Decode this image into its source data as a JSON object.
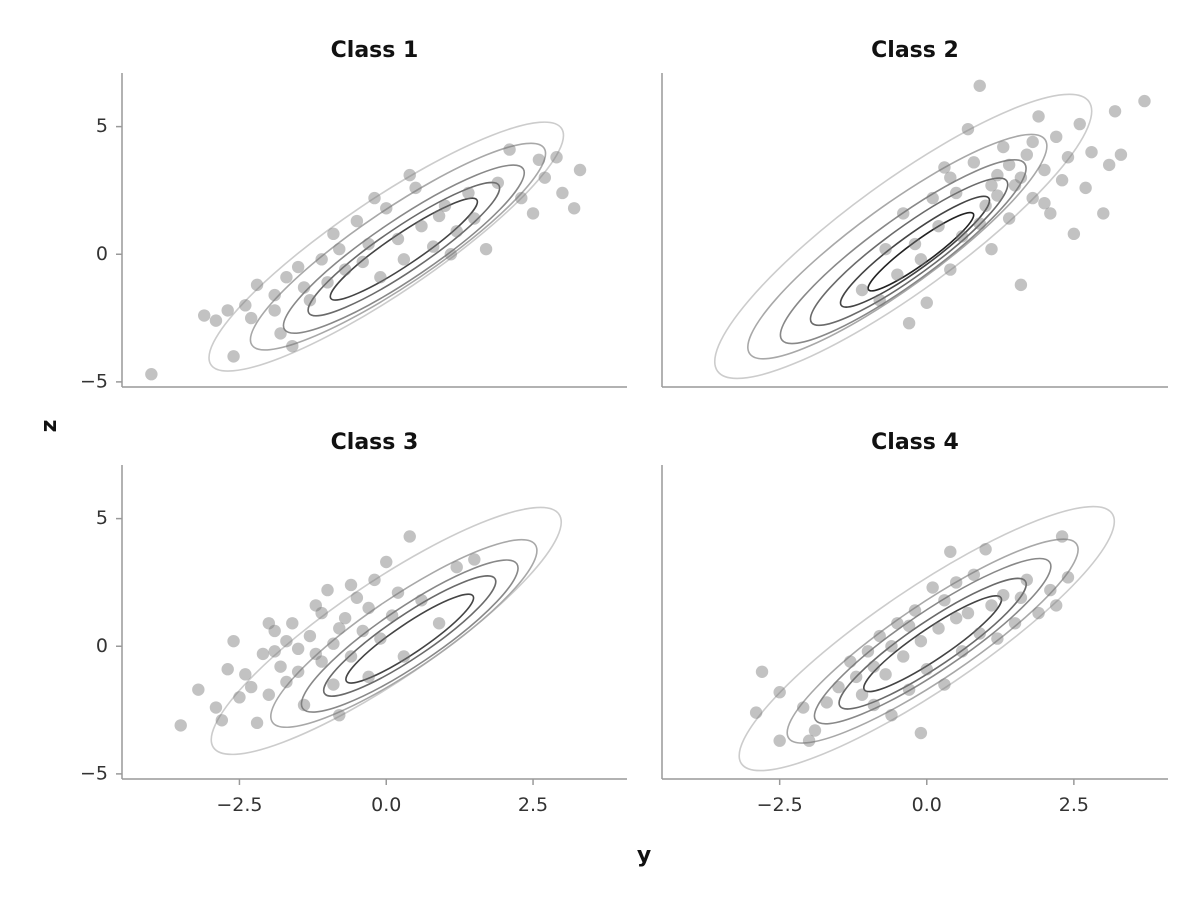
{
  "chart_data": {
    "type": "scatter",
    "xlabel": "y",
    "ylabel": "z",
    "xlim": [
      -4.5,
      4.1
    ],
    "ylim": [
      -5.2,
      7.1
    ],
    "xticks": [
      "−2.5",
      "0.0",
      "2.5"
    ],
    "xtick_values": [
      -2.5,
      0.0,
      2.5
    ],
    "yticks": [
      "5",
      "0",
      "−5"
    ],
    "ytick_values": [
      5,
      0,
      -5
    ],
    "contour_colors": [
      "#cccccc",
      "#a8a8a8",
      "#888888",
      "#6a6a6a",
      "#444444",
      "#222222"
    ],
    "point_color": "#777777",
    "panels": [
      {
        "title": "Class 1",
        "points": [
          {
            "x": -4.0,
            "y": -4.7
          },
          {
            "x": -2.6,
            "y": -4.0
          },
          {
            "x": -3.1,
            "y": -2.4
          },
          {
            "x": -2.9,
            "y": -2.6
          },
          {
            "x": -2.7,
            "y": -2.2
          },
          {
            "x": -2.4,
            "y": -2.0
          },
          {
            "x": -2.2,
            "y": -1.2
          },
          {
            "x": -1.9,
            "y": -1.6
          },
          {
            "x": -1.6,
            "y": -3.6
          },
          {
            "x": -1.8,
            "y": -3.1
          },
          {
            "x": -1.5,
            "y": -0.5
          },
          {
            "x": -1.3,
            "y": -1.8
          },
          {
            "x": -1.1,
            "y": -0.2
          },
          {
            "x": -1.0,
            "y": -1.1
          },
          {
            "x": -0.9,
            "y": 0.8
          },
          {
            "x": -0.7,
            "y": -0.6
          },
          {
            "x": -0.5,
            "y": 1.3
          },
          {
            "x": -0.4,
            "y": -0.3
          },
          {
            "x": -0.3,
            "y": 0.4
          },
          {
            "x": -0.1,
            "y": -0.9
          },
          {
            "x": 0.0,
            "y": 1.8
          },
          {
            "x": 0.2,
            "y": 0.6
          },
          {
            "x": 0.3,
            "y": -0.2
          },
          {
            "x": 0.5,
            "y": 2.6
          },
          {
            "x": 0.6,
            "y": 1.1
          },
          {
            "x": 0.8,
            "y": 0.3
          },
          {
            "x": 1.0,
            "y": 1.9
          },
          {
            "x": 1.2,
            "y": 0.9
          },
          {
            "x": 1.4,
            "y": 2.4
          },
          {
            "x": 1.5,
            "y": 1.4
          },
          {
            "x": 1.7,
            "y": 0.2
          },
          {
            "x": 1.9,
            "y": 2.8
          },
          {
            "x": 2.1,
            "y": 4.1
          },
          {
            "x": 2.3,
            "y": 2.2
          },
          {
            "x": 2.5,
            "y": 1.6
          },
          {
            "x": 2.7,
            "y": 3.0
          },
          {
            "x": 2.9,
            "y": 3.8
          },
          {
            "x": 3.0,
            "y": 2.4
          },
          {
            "x": 3.2,
            "y": 1.8
          },
          {
            "x": 3.3,
            "y": 3.3
          },
          {
            "x": 2.6,
            "y": 3.7
          },
          {
            "x": 0.4,
            "y": 3.1
          },
          {
            "x": -1.9,
            "y": -2.2
          },
          {
            "x": -2.3,
            "y": -2.5
          },
          {
            "x": -0.8,
            "y": 0.2
          },
          {
            "x": 0.9,
            "y": 1.5
          },
          {
            "x": -1.4,
            "y": -1.3
          },
          {
            "x": 1.1,
            "y": 0.0
          },
          {
            "x": -0.2,
            "y": 2.2
          },
          {
            "x": -1.7,
            "y": -0.9
          }
        ]
      },
      {
        "title": "Class 2",
        "points": [
          {
            "x": -0.8,
            "y": -1.8
          },
          {
            "x": -0.3,
            "y": -2.7
          },
          {
            "x": -1.1,
            "y": -1.4
          },
          {
            "x": -0.5,
            "y": -0.8
          },
          {
            "x": -0.2,
            "y": 0.4
          },
          {
            "x": 0.0,
            "y": -1.9
          },
          {
            "x": 0.2,
            "y": 1.1
          },
          {
            "x": 0.4,
            "y": -0.6
          },
          {
            "x": 0.5,
            "y": 2.4
          },
          {
            "x": 0.6,
            "y": 0.7
          },
          {
            "x": 0.8,
            "y": 3.6
          },
          {
            "x": 0.9,
            "y": 6.6
          },
          {
            "x": 1.0,
            "y": 1.9
          },
          {
            "x": 1.1,
            "y": 0.2
          },
          {
            "x": 1.2,
            "y": 3.1
          },
          {
            "x": 1.3,
            "y": 4.2
          },
          {
            "x": 1.4,
            "y": 1.4
          },
          {
            "x": 1.5,
            "y": 2.7
          },
          {
            "x": 1.6,
            "y": -1.2
          },
          {
            "x": 1.7,
            "y": 3.9
          },
          {
            "x": 1.8,
            "y": 2.2
          },
          {
            "x": 1.9,
            "y": 5.4
          },
          {
            "x": 2.0,
            "y": 3.3
          },
          {
            "x": 2.1,
            "y": 1.6
          },
          {
            "x": 2.2,
            "y": 4.6
          },
          {
            "x": 2.3,
            "y": 2.9
          },
          {
            "x": 2.4,
            "y": 3.8
          },
          {
            "x": 2.5,
            "y": 0.8
          },
          {
            "x": 2.6,
            "y": 5.1
          },
          {
            "x": 2.8,
            "y": 4.0
          },
          {
            "x": 3.0,
            "y": 1.6
          },
          {
            "x": 3.1,
            "y": 3.5
          },
          {
            "x": 3.2,
            "y": 5.6
          },
          {
            "x": 3.3,
            "y": 3.9
          },
          {
            "x": 3.7,
            "y": 6.0
          },
          {
            "x": 0.3,
            "y": 3.4
          },
          {
            "x": -0.4,
            "y": 1.6
          },
          {
            "x": 0.7,
            "y": 4.9
          },
          {
            "x": 1.1,
            "y": 2.7
          },
          {
            "x": 0.1,
            "y": 2.2
          },
          {
            "x": -0.7,
            "y": 0.2
          },
          {
            "x": 1.6,
            "y": 3.0
          },
          {
            "x": 2.0,
            "y": 2.0
          },
          {
            "x": 0.9,
            "y": 1.2
          },
          {
            "x": 1.4,
            "y": 3.5
          },
          {
            "x": -0.1,
            "y": -0.2
          },
          {
            "x": 2.7,
            "y": 2.6
          },
          {
            "x": 1.2,
            "y": 2.3
          },
          {
            "x": 0.4,
            "y": 3.0
          },
          {
            "x": 1.8,
            "y": 4.4
          }
        ]
      },
      {
        "title": "Class 3",
        "points": [
          {
            "x": -3.5,
            "y": -3.1
          },
          {
            "x": -3.2,
            "y": -1.7
          },
          {
            "x": -2.9,
            "y": -2.4
          },
          {
            "x": -2.8,
            "y": -2.9
          },
          {
            "x": -2.6,
            "y": 0.2
          },
          {
            "x": -2.4,
            "y": -1.1
          },
          {
            "x": -2.2,
            "y": -3.0
          },
          {
            "x": -2.1,
            "y": -0.3
          },
          {
            "x": -2.0,
            "y": -1.9
          },
          {
            "x": -1.9,
            "y": 0.6
          },
          {
            "x": -1.8,
            "y": -0.8
          },
          {
            "x": -1.7,
            "y": -1.4
          },
          {
            "x": -1.6,
            "y": 0.9
          },
          {
            "x": -1.5,
            "y": -0.1
          },
          {
            "x": -1.4,
            "y": -2.3
          },
          {
            "x": -1.3,
            "y": 0.4
          },
          {
            "x": -1.2,
            "y": 1.6
          },
          {
            "x": -1.1,
            "y": -0.6
          },
          {
            "x": -1.0,
            "y": 2.2
          },
          {
            "x": -0.9,
            "y": 0.1
          },
          {
            "x": -0.8,
            "y": -2.7
          },
          {
            "x": -0.7,
            "y": 1.1
          },
          {
            "x": -0.6,
            "y": -0.4
          },
          {
            "x": -0.5,
            "y": 1.9
          },
          {
            "x": -0.4,
            "y": 0.6
          },
          {
            "x": -0.3,
            "y": -1.2
          },
          {
            "x": -0.2,
            "y": 2.6
          },
          {
            "x": -0.1,
            "y": 0.3
          },
          {
            "x": 0.0,
            "y": 3.3
          },
          {
            "x": 0.1,
            "y": 1.2
          },
          {
            "x": 0.3,
            "y": -0.4
          },
          {
            "x": 0.4,
            "y": 4.3
          },
          {
            "x": 0.6,
            "y": 1.8
          },
          {
            "x": 0.9,
            "y": 0.9
          },
          {
            "x": 1.2,
            "y": 3.1
          },
          {
            "x": 1.5,
            "y": 3.4
          },
          {
            "x": -2.7,
            "y": -0.9
          },
          {
            "x": -2.3,
            "y": -1.6
          },
          {
            "x": -1.7,
            "y": 0.2
          },
          {
            "x": -1.1,
            "y": 1.3
          },
          {
            "x": -0.9,
            "y": -1.5
          },
          {
            "x": -0.6,
            "y": 2.4
          },
          {
            "x": -1.5,
            "y": -1.0
          },
          {
            "x": -1.9,
            "y": -0.2
          },
          {
            "x": -2.5,
            "y": -2.0
          },
          {
            "x": -0.3,
            "y": 1.5
          },
          {
            "x": 0.2,
            "y": 2.1
          },
          {
            "x": -1.2,
            "y": -0.3
          },
          {
            "x": -0.8,
            "y": 0.7
          },
          {
            "x": -2.0,
            "y": 0.9
          }
        ]
      },
      {
        "title": "Class 4",
        "points": [
          {
            "x": -2.5,
            "y": -3.7
          },
          {
            "x": -2.0,
            "y": -3.7
          },
          {
            "x": -2.9,
            "y": -2.6
          },
          {
            "x": -2.8,
            "y": -1.0
          },
          {
            "x": -2.5,
            "y": -1.8
          },
          {
            "x": -2.1,
            "y": -2.4
          },
          {
            "x": -1.9,
            "y": -3.3
          },
          {
            "x": -1.7,
            "y": -2.2
          },
          {
            "x": -1.5,
            "y": -1.6
          },
          {
            "x": -1.3,
            "y": -0.6
          },
          {
            "x": -1.1,
            "y": -1.9
          },
          {
            "x": -1.0,
            "y": -0.2
          },
          {
            "x": -0.9,
            "y": -2.3
          },
          {
            "x": -0.8,
            "y": 0.4
          },
          {
            "x": -0.7,
            "y": -1.1
          },
          {
            "x": -0.6,
            "y": -2.7
          },
          {
            "x": -0.5,
            "y": 0.9
          },
          {
            "x": -0.4,
            "y": -0.4
          },
          {
            "x": -0.3,
            "y": -1.7
          },
          {
            "x": -0.2,
            "y": 1.4
          },
          {
            "x": -0.1,
            "y": 0.2
          },
          {
            "x": 0.0,
            "y": -0.9
          },
          {
            "x": 0.1,
            "y": 2.3
          },
          {
            "x": 0.2,
            "y": 0.7
          },
          {
            "x": 0.3,
            "y": -1.5
          },
          {
            "x": 0.4,
            "y": 3.7
          },
          {
            "x": 0.5,
            "y": 1.1
          },
          {
            "x": 0.6,
            "y": -0.2
          },
          {
            "x": 0.8,
            "y": 2.8
          },
          {
            "x": 0.9,
            "y": 0.5
          },
          {
            "x": 1.0,
            "y": 3.8
          },
          {
            "x": 1.1,
            "y": 1.6
          },
          {
            "x": 1.3,
            "y": 2.0
          },
          {
            "x": 1.5,
            "y": 0.9
          },
          {
            "x": 1.7,
            "y": 2.6
          },
          {
            "x": 1.9,
            "y": 1.3
          },
          {
            "x": 2.1,
            "y": 2.2
          },
          {
            "x": 2.2,
            "y": 1.6
          },
          {
            "x": 2.3,
            "y": 4.3
          },
          {
            "x": 2.4,
            "y": 2.7
          },
          {
            "x": -0.1,
            "y": -3.4
          },
          {
            "x": -1.2,
            "y": -1.2
          },
          {
            "x": 0.3,
            "y": 1.8
          },
          {
            "x": 0.7,
            "y": 1.3
          },
          {
            "x": -0.6,
            "y": 0.0
          },
          {
            "x": 1.2,
            "y": 0.3
          },
          {
            "x": -0.9,
            "y": -0.8
          },
          {
            "x": 0.5,
            "y": 2.5
          },
          {
            "x": -0.3,
            "y": 0.8
          },
          {
            "x": 1.6,
            "y": 1.9
          }
        ]
      }
    ],
    "contours": [
      [
        {
          "cx": 0.0,
          "cy": 0.3,
          "rx": 3.6,
          "ry": 1.15,
          "angle": 34
        },
        {
          "cx": 0.2,
          "cy": 0.3,
          "rx": 3.0,
          "ry": 0.92,
          "angle": 34
        },
        {
          "cx": 0.3,
          "cy": 0.2,
          "rx": 2.45,
          "ry": 0.72,
          "angle": 34
        },
        {
          "cx": 0.3,
          "cy": 0.2,
          "rx": 1.95,
          "ry": 0.54,
          "angle": 34
        },
        {
          "cx": 0.3,
          "cy": 0.2,
          "rx": 1.5,
          "ry": 0.38,
          "angle": 34
        }
      ],
      [
        {
          "cx": -0.4,
          "cy": 0.7,
          "rx": 3.9,
          "ry": 1.35,
          "angle": 36
        },
        {
          "cx": -0.5,
          "cy": 0.3,
          "rx": 3.1,
          "ry": 1.0,
          "angle": 36
        },
        {
          "cx": -0.4,
          "cy": 0.1,
          "rx": 2.55,
          "ry": 0.78,
          "angle": 36
        },
        {
          "cx": -0.3,
          "cy": 0.1,
          "rx": 2.05,
          "ry": 0.6,
          "angle": 36
        },
        {
          "cx": -0.2,
          "cy": 0.1,
          "rx": 1.55,
          "ry": 0.42,
          "angle": 36
        },
        {
          "cx": -0.1,
          "cy": 0.1,
          "rx": 1.1,
          "ry": 0.28,
          "angle": 36
        }
      ],
      [
        {
          "cx": 0.0,
          "cy": 0.6,
          "rx": 3.55,
          "ry": 1.2,
          "angle": 34
        },
        {
          "cx": 0.3,
          "cy": 0.5,
          "rx": 2.7,
          "ry": 0.9,
          "angle": 34
        },
        {
          "cx": 0.4,
          "cy": 0.4,
          "rx": 2.2,
          "ry": 0.7,
          "angle": 34
        },
        {
          "cx": 0.4,
          "cy": 0.4,
          "rx": 1.75,
          "ry": 0.52,
          "angle": 34
        },
        {
          "cx": 0.4,
          "cy": 0.3,
          "rx": 1.3,
          "ry": 0.36,
          "angle": 34
        }
      ],
      [
        {
          "cx": 0.0,
          "cy": 0.3,
          "rx": 3.8,
          "ry": 1.25,
          "angle": 34
        },
        {
          "cx": 0.1,
          "cy": 0.2,
          "rx": 2.95,
          "ry": 0.92,
          "angle": 34
        },
        {
          "cx": 0.1,
          "cy": 0.2,
          "rx": 2.4,
          "ry": 0.72,
          "angle": 34
        },
        {
          "cx": 0.1,
          "cy": 0.1,
          "rx": 1.9,
          "ry": 0.55,
          "angle": 34
        },
        {
          "cx": 0.1,
          "cy": 0.1,
          "rx": 1.4,
          "ry": 0.38,
          "angle": 34
        }
      ]
    ]
  }
}
